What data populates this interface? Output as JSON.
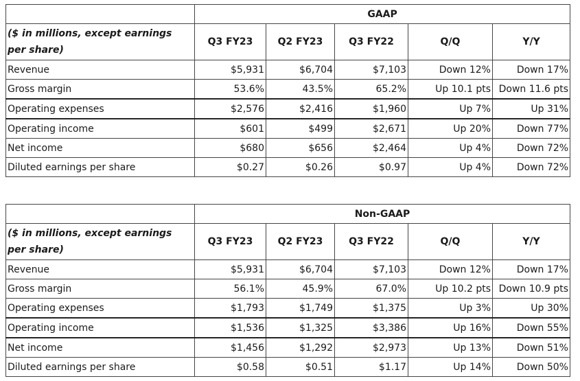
{
  "gaap": {
    "title": "GAAP",
    "unit_label": "($ in millions, except earnings per share)",
    "columns": [
      "Q3 FY23",
      "Q2 FY23",
      "Q3 FY22",
      "Q/Q",
      "Y/Y"
    ],
    "rows": [
      {
        "label": "Revenue",
        "values": [
          "$5,931",
          "$6,704",
          "$7,103",
          "Down 12%",
          "Down 17%"
        ]
      },
      {
        "label": "Gross margin",
        "values": [
          "53.6%",
          "43.5%",
          "65.2%",
          "Up 10.1 pts",
          "Down 11.6 pts"
        ]
      },
      {
        "label": "Operating expenses",
        "values": [
          "$2,576",
          "$2,416",
          "$1,960",
          "Up 7%",
          "Up 31%"
        ]
      },
      {
        "label": "Operating income",
        "values": [
          "$601",
          "$499",
          "$2,671",
          "Up 20%",
          "Down 77%"
        ]
      },
      {
        "label": "Net income",
        "values": [
          "$680",
          "$656",
          "$2,464",
          "Up 4%",
          "Down 72%"
        ]
      },
      {
        "label": "Diluted earnings per share",
        "values": [
          "$0.27",
          "$0.26",
          "$0.97",
          "Up 4%",
          "Down 72%"
        ]
      }
    ]
  },
  "nongaap": {
    "title": "Non-GAAP",
    "unit_label": "($ in millions, except earnings per share)",
    "columns": [
      "Q3 FY23",
      "Q2 FY23",
      "Q3 FY22",
      "Q/Q",
      "Y/Y"
    ],
    "rows": [
      {
        "label": "Revenue",
        "values": [
          "$5,931",
          "$6,704",
          "$7,103",
          "Down 12%",
          "Down 17%"
        ]
      },
      {
        "label": "Gross margin",
        "values": [
          "56.1%",
          "45.9%",
          "67.0%",
          "Up 10.2 pts",
          "Down 10.9 pts"
        ]
      },
      {
        "label": "Operating expenses",
        "values": [
          "$1,793",
          "$1,749",
          "$1,375",
          "Up 3%",
          "Up 30%"
        ]
      },
      {
        "label": "Operating income",
        "values": [
          "$1,536",
          "$1,325",
          "$3,386",
          "Up 16%",
          "Down 55%"
        ]
      },
      {
        "label": "Net income",
        "values": [
          "$1,456",
          "$1,292",
          "$2,973",
          "Up 13%",
          "Down 51%"
        ]
      },
      {
        "label": "Diluted earnings per share",
        "values": [
          "$0.58",
          "$0.51",
          "$1.17",
          "Up 14%",
          "Down 50%"
        ]
      }
    ]
  }
}
